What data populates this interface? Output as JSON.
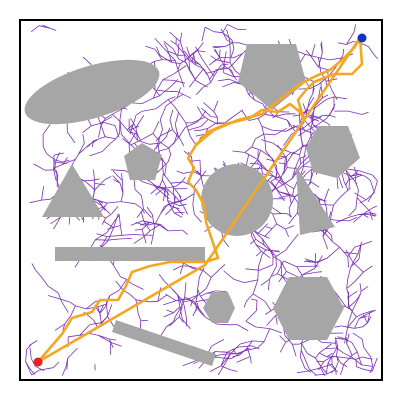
{
  "colors": {
    "background": "#ffffff",
    "frame": "#000000",
    "obstacle": "#a6a6a6",
    "tree": "#7a2fb8",
    "path": "#f5a623",
    "start": "#e8201f",
    "goal": "#1530c8"
  },
  "obstacles": [
    {
      "kind": "ellipse",
      "label": "ellipse-obstacle"
    },
    {
      "kind": "pentagon",
      "label": "pentagon-obstacle-top"
    },
    {
      "kind": "pentagon",
      "label": "pentagon-obstacle-right"
    },
    {
      "kind": "pentagon",
      "label": "pentagon-obstacle-small"
    },
    {
      "kind": "triangle",
      "label": "triangle-obstacle-left"
    },
    {
      "kind": "circle",
      "label": "circle-obstacle"
    },
    {
      "kind": "triangle",
      "label": "triangle-obstacle-right"
    },
    {
      "kind": "bar",
      "label": "horizontal-bar-obstacle"
    },
    {
      "kind": "hexagon",
      "label": "hexagon-obstacle-small"
    },
    {
      "kind": "hexagon",
      "label": "hexagon-obstacle-large"
    },
    {
      "kind": "bar",
      "label": "diagonal-bar-obstacle"
    }
  ],
  "markers": {
    "start": "start-node",
    "goal": "goal-node"
  }
}
